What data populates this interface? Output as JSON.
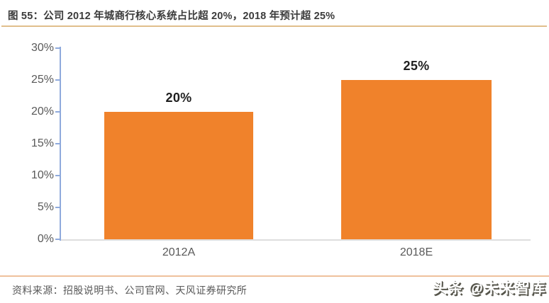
{
  "header": {
    "title": "图 55：公司 2012 年城商行核心系统占比超 20%，2018 年预计超 25%"
  },
  "chart_data": {
    "type": "bar",
    "categories": [
      "2012A",
      "2018E"
    ],
    "values": [
      20,
      25
    ],
    "data_labels": [
      "20%",
      "25%"
    ],
    "title": "",
    "xlabel": "",
    "ylabel": "",
    "ylim": [
      0,
      30
    ],
    "ytick_step": 5,
    "yticks": [
      "0%",
      "5%",
      "10%",
      "15%",
      "20%",
      "25%",
      "30%"
    ],
    "grid": false,
    "legend": "none",
    "bar_color": "#f0822b",
    "axis_color": "#8faadc",
    "baseline_color": "#dedede"
  },
  "footer": {
    "source": "资料来源：招股说明书、公司官网、天风证券研究所",
    "watermark": "头条 @未来智库"
  },
  "colors": {
    "title_text": "#3b3b3b",
    "axis_label_text": "#595959",
    "title_rule": "#e0be8c",
    "footer_rule": "#efc19c",
    "watermark_text": "#ffffff",
    "watermark_shadow": "#55544a"
  }
}
